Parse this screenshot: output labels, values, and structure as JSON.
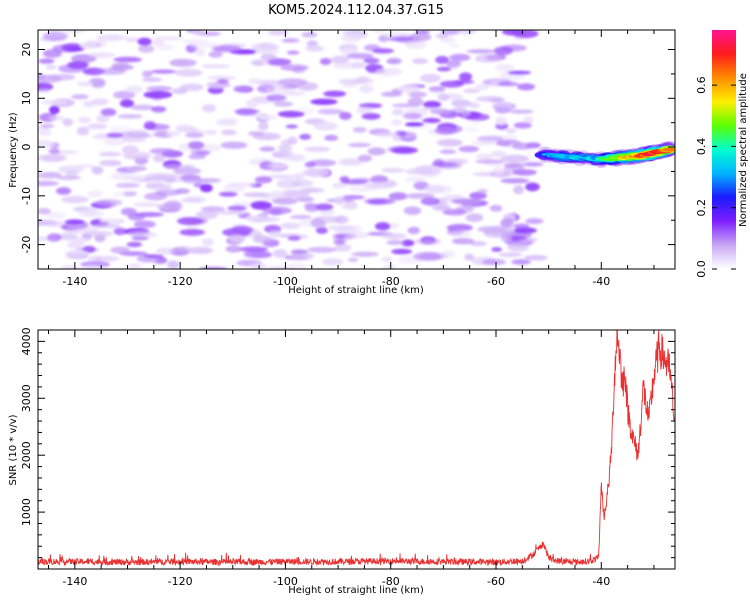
{
  "title": "KOM5.2024.112.04.37.G15",
  "chart_data": [
    {
      "type": "heatmap",
      "xlabel": "Height of straight line (km)",
      "ylabel": "Frequency (Hz)",
      "xlim": [
        -147,
        -26
      ],
      "ylim": [
        -25,
        24
      ],
      "x_ticks": [
        -140,
        -120,
        -100,
        -80,
        -60,
        -40
      ],
      "x_tick_labels": [
        "-140",
        "-120",
        "-100",
        "-80",
        "-60",
        "-40"
      ],
      "y_ticks": [
        -20,
        -10,
        0,
        10,
        20
      ],
      "y_tick_labels": [
        "-20",
        "-10",
        "0",
        "10",
        "20"
      ],
      "colorbar": {
        "label": "Normalized spectral amplitude",
        "range": [
          0,
          0.78
        ],
        "ticks": [
          0.0,
          0.2,
          0.4,
          0.6
        ],
        "tick_labels": [
          "0.0",
          "0.2",
          "0.4",
          "0.6"
        ],
        "colormap": [
          "#ffffff",
          "#c9a8f5",
          "#7f1fff",
          "#1a1aff",
          "#00b4ff",
          "#00ffd0",
          "#5cff00",
          "#ffee00",
          "#ff8c00",
          "#ff1a1a",
          "#ff1493"
        ]
      },
      "noise_region": {
        "x_range": [
          -147,
          -52
        ],
        "y_range": [
          -25,
          24
        ],
        "amplitude_range": [
          0.0,
          0.15
        ]
      },
      "signal_ridge": [
        {
          "x": -51,
          "y": -1.5,
          "amplitude": 0.25
        },
        {
          "x": -47,
          "y": -2.0,
          "amplitude": 0.3
        },
        {
          "x": -40,
          "y": -2.5,
          "amplitude": 0.35
        },
        {
          "x": -35,
          "y": -2.0,
          "amplitude": 0.55
        },
        {
          "x": -31,
          "y": -1.5,
          "amplitude": 0.7
        },
        {
          "x": -27,
          "y": -0.5,
          "amplitude": 0.6
        }
      ]
    },
    {
      "type": "line",
      "xlabel": "Height of straight line (km)",
      "ylabel": "SNR (10 * v/v)",
      "xlim": [
        -147,
        -26
      ],
      "ylim": [
        0,
        4200
      ],
      "x_ticks": [
        -140,
        -120,
        -100,
        -80,
        -60,
        -40
      ],
      "x_tick_labels": [
        "-140",
        "-120",
        "-100",
        "-80",
        "-60",
        "-40"
      ],
      "y_ticks": [
        1000,
        2000,
        3000,
        4000
      ],
      "y_tick_labels": [
        "1000",
        "2000",
        "3000",
        "4000"
      ],
      "line_color": "#e83030",
      "series": [
        {
          "x": [
            -147,
            -140,
            -130,
            -120,
            -110,
            -100,
            -90,
            -80,
            -70,
            -60,
            -55,
            -53,
            -51,
            -50,
            -49,
            -47,
            -45,
            -42,
            -40.5,
            -40,
            -39.5,
            -39,
            -38.5,
            -38,
            -37.5,
            -37,
            -36.5,
            -36,
            -35.5,
            -35,
            -34,
            -33,
            -32,
            -31,
            -30,
            -29,
            -28,
            -27,
            -26
          ],
          "y": [
            130,
            130,
            120,
            130,
            120,
            130,
            130,
            140,
            130,
            120,
            140,
            250,
            450,
            200,
            150,
            130,
            120,
            140,
            200,
            1500,
            900,
            1200,
            1600,
            2200,
            3400,
            4150,
            3800,
            3200,
            3500,
            2800,
            2300,
            2000,
            3200,
            2600,
            3400,
            3900,
            3700,
            3500,
            2500
          ]
        }
      ]
    }
  ]
}
